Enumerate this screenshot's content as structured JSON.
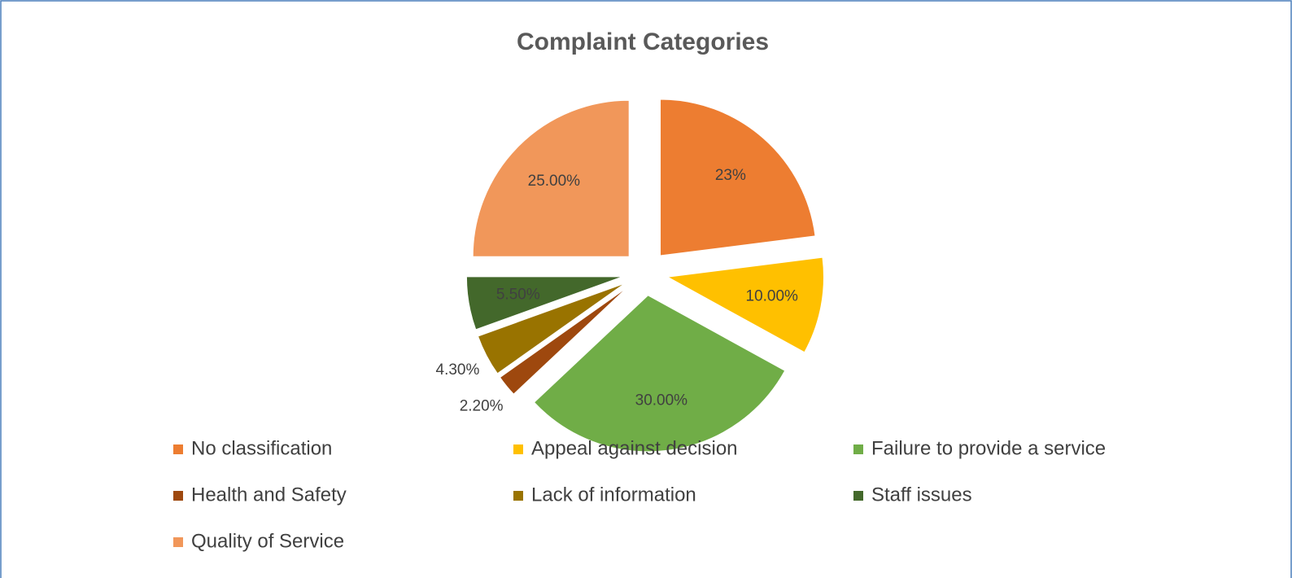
{
  "chart_data": {
    "type": "pie",
    "title": "Complaint Categories",
    "categories": [
      "No classification",
      "Appeal against decision",
      "Failure to provide a service",
      "Health and Safety",
      "Lack of information",
      "Staff issues",
      "Quality of Service"
    ],
    "values": [
      23,
      10,
      30,
      2.2,
      4.3,
      5.5,
      25
    ],
    "value_labels": [
      "23%",
      "10.00%",
      "30.00%",
      "2.20%",
      "4.30%",
      "5.50%",
      "25.00%"
    ],
    "colors": [
      "#ED7D31",
      "#FFC000",
      "#70AD47",
      "#9E480E",
      "#997300",
      "#43682B",
      "#F1975A"
    ],
    "legend": "bottom"
  }
}
